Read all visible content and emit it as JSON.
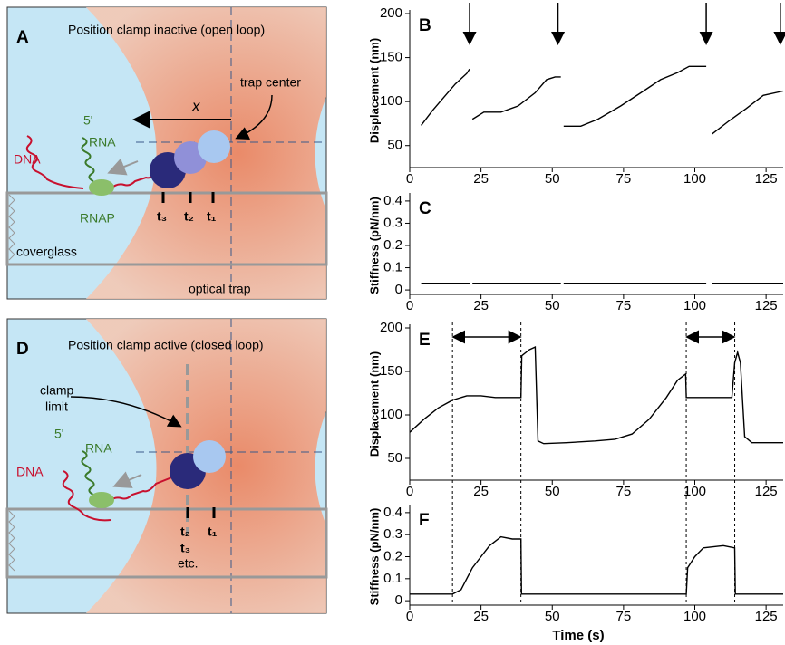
{
  "diagram_a": {
    "label": "A",
    "title": "Position clamp inactive (open loop)",
    "trap_center": "trap center",
    "x_label": "x",
    "dna": "DNA",
    "five_prime": "5'",
    "rna": "RNA",
    "rnap": "RNAP",
    "ticks": [
      "t₃",
      "t₂",
      "t₁"
    ],
    "coverglass": "coverglass",
    "optical_trap": "optical trap"
  },
  "diagram_d": {
    "label": "D",
    "title": "Position clamp active (closed loop)",
    "clamp": "clamp",
    "limit": "limit",
    "dna": "DNA",
    "five_prime": "5'",
    "rna": "RNA",
    "ticks": [
      "t₂",
      "t₁"
    ],
    "t3": "t₃",
    "etc": "etc."
  },
  "chart_data": [
    {
      "type": "line",
      "label": "B",
      "ylabel": "Displacement (nm)",
      "xlim": [
        0,
        131
      ],
      "ylim": [
        25,
        200
      ],
      "xticks": [
        0,
        25,
        50,
        75,
        100,
        125
      ],
      "yticks": [
        50,
        100,
        150,
        200
      ],
      "arrows_x": [
        21,
        52,
        104,
        130
      ],
      "x": [
        4,
        8,
        12,
        16,
        20,
        21,
        null,
        22,
        26,
        32,
        38,
        44,
        48,
        51,
        53,
        null,
        54,
        60,
        66,
        74,
        82,
        88,
        94,
        98,
        104,
        null,
        106,
        112,
        118,
        124,
        131
      ],
      "series": [
        {
          "color": "#000000",
          "values": [
            73,
            90,
            105,
            120,
            132,
            137,
            null,
            80,
            88,
            88,
            95,
            110,
            125,
            128,
            128,
            null,
            72,
            72,
            80,
            95,
            112,
            125,
            133,
            140,
            140,
            null,
            63,
            78,
            92,
            107,
            112
          ]
        }
      ]
    },
    {
      "type": "line",
      "label": "C",
      "ylabel": "Stiffness (pN/nm)",
      "xlim": [
        0,
        131
      ],
      "ylim": [
        -0.02,
        0.42
      ],
      "xticks": [
        0,
        25,
        50,
        75,
        100,
        125
      ],
      "yticks": [
        0,
        0.1,
        0.2,
        0.3,
        0.4
      ],
      "x": [
        4,
        21,
        null,
        22,
        53,
        null,
        54,
        104,
        null,
        106,
        131
      ],
      "series": [
        {
          "color": "#000000",
          "values": [
            0.03,
            0.03,
            null,
            0.03,
            0.03,
            null,
            0.03,
            0.03,
            null,
            0.03,
            0.03
          ]
        }
      ]
    },
    {
      "type": "line",
      "label": "E",
      "ylabel": "Displacement (nm)",
      "xlim": [
        0,
        131
      ],
      "ylim": [
        25,
        200
      ],
      "xticks": [
        0,
        25,
        50,
        75,
        100,
        125
      ],
      "yticks": [
        50,
        100,
        150,
        200
      ],
      "dashed_x": [
        15,
        39,
        97,
        114
      ],
      "double_arrows": [
        [
          15,
          39
        ],
        [
          97,
          114
        ]
      ],
      "x": [
        0,
        5,
        10,
        15,
        20,
        25,
        30,
        39,
        39.3,
        42,
        44,
        45,
        47,
        55,
        65,
        72,
        78,
        84,
        90,
        94,
        96.8,
        97,
        113,
        114,
        115,
        116,
        117.5,
        120,
        131
      ],
      "series": [
        {
          "color": "#000000",
          "values": [
            80,
            95,
            108,
            117,
            122,
            122,
            120,
            120,
            168,
            175,
            178,
            70,
            67,
            68,
            70,
            72,
            78,
            95,
            120,
            140,
            147,
            120,
            120,
            160,
            172,
            160,
            75,
            68,
            68
          ]
        }
      ]
    },
    {
      "type": "line",
      "label": "F",
      "ylabel": "Stiffness (pN/nm)",
      "xlabel": "Time (s)",
      "xlim": [
        0,
        131
      ],
      "ylim": [
        -0.02,
        0.42
      ],
      "xticks": [
        0,
        25,
        50,
        75,
        100,
        125
      ],
      "yticks": [
        0,
        0.1,
        0.2,
        0.3,
        0.4
      ],
      "x": [
        0,
        15,
        18,
        20,
        22,
        25,
        28,
        32,
        36,
        39,
        39.2,
        97,
        97.5,
        100,
        103,
        110,
        114,
        114.2,
        131
      ],
      "series": [
        {
          "color": "#000000",
          "values": [
            0.03,
            0.03,
            0.05,
            0.1,
            0.15,
            0.2,
            0.25,
            0.29,
            0.28,
            0.28,
            0.03,
            0.03,
            0.15,
            0.2,
            0.24,
            0.25,
            0.24,
            0.03,
            0.03
          ]
        }
      ]
    }
  ]
}
